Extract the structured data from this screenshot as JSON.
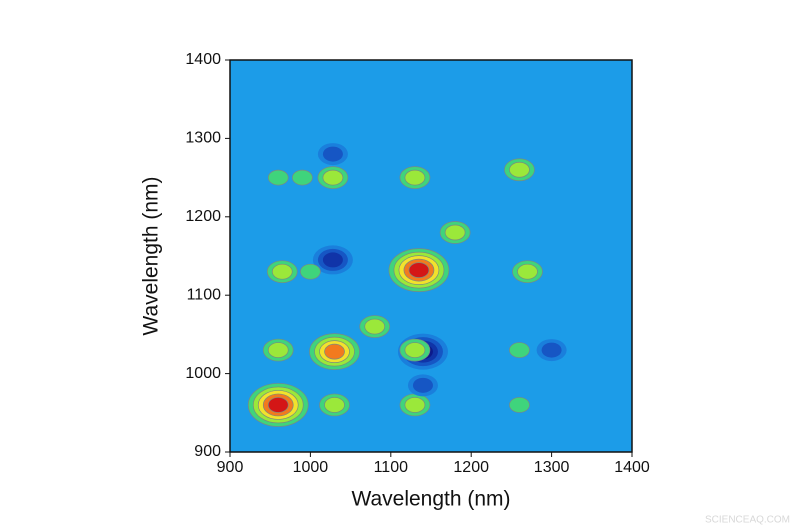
{
  "chart_data": {
    "type": "contour",
    "x_label": "Wavelength (nm)",
    "y_label": "Wavelength (nm)",
    "xlim": [
      900,
      1400
    ],
    "ylim": [
      900,
      1400
    ],
    "xticks": [
      900,
      1000,
      1100,
      1200,
      1300,
      1400
    ],
    "yticks": [
      900,
      1000,
      1100,
      1200,
      1300,
      1400
    ],
    "background": "#1c9ce8",
    "positive_colors": [
      "#3fd47c",
      "#9be83a",
      "#f2e22c",
      "#f27a1e",
      "#d41616"
    ],
    "negative_colors": [
      "#1a7fdc",
      "#1656c4",
      "#1034a8",
      "#0c1a8a"
    ],
    "peaks": [
      {
        "x": 960,
        "y": 960,
        "level": 5
      },
      {
        "x": 1030,
        "y": 1028,
        "level": 4
      },
      {
        "x": 1135,
        "y": 1132,
        "level": 5
      },
      {
        "x": 1140,
        "y": 1028,
        "level": -4
      },
      {
        "x": 1028,
        "y": 1145,
        "level": -3
      },
      {
        "x": 1028,
        "y": 1280,
        "level": -2
      },
      {
        "x": 1028,
        "y": 1250,
        "level": 2
      },
      {
        "x": 960,
        "y": 1030,
        "level": 2
      },
      {
        "x": 1030,
        "y": 960,
        "level": 2
      },
      {
        "x": 1130,
        "y": 1250,
        "level": 2
      },
      {
        "x": 1260,
        "y": 1260,
        "level": 2
      },
      {
        "x": 1270,
        "y": 1130,
        "level": 2
      },
      {
        "x": 1130,
        "y": 960,
        "level": 2
      },
      {
        "x": 1260,
        "y": 1030,
        "level": 1
      },
      {
        "x": 1300,
        "y": 1030,
        "level": -2
      },
      {
        "x": 1140,
        "y": 985,
        "level": -2
      },
      {
        "x": 1180,
        "y": 1180,
        "level": 2
      },
      {
        "x": 965,
        "y": 1130,
        "level": 2
      },
      {
        "x": 1000,
        "y": 1130,
        "level": 1
      },
      {
        "x": 960,
        "y": 1250,
        "level": 1
      },
      {
        "x": 990,
        "y": 1250,
        "level": 1
      },
      {
        "x": 1080,
        "y": 1060,
        "level": 2
      },
      {
        "x": 1260,
        "y": 960,
        "level": 1
      },
      {
        "x": 1130,
        "y": 1030,
        "level": 2
      }
    ]
  },
  "watermark": "SCIENCEAQ.COM"
}
